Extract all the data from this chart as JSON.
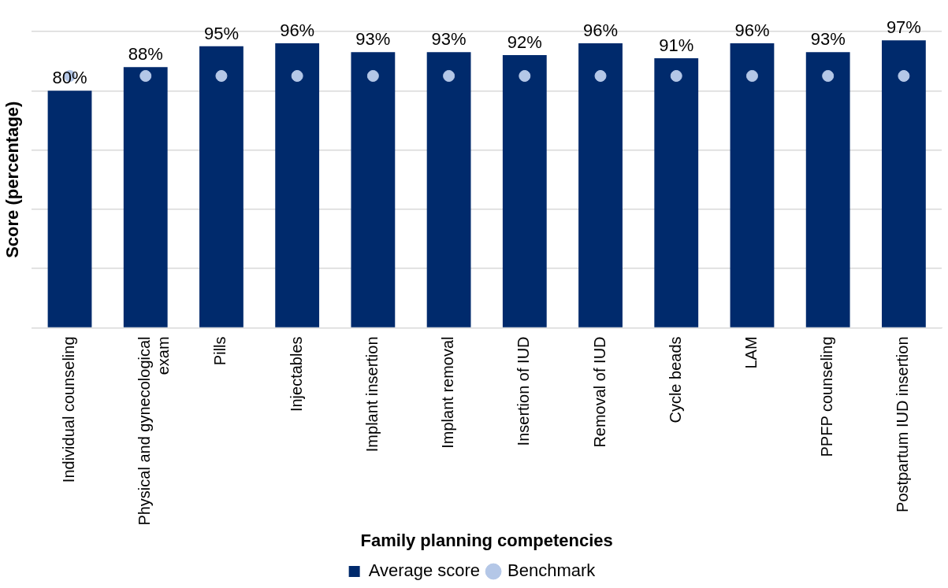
{
  "chart_data": {
    "type": "bar",
    "xlabel": "Family planning competencies",
    "ylabel": "Score (percentage)",
    "categories": [
      "Individual counseling",
      "Physical and gynecological exam",
      "Pills",
      "Injectables",
      "Implant insertion",
      "Implant removal",
      "Insertion of IUD",
      "Removal of IUD",
      "Cycle beads",
      "LAM",
      "PPFP counseling",
      "Postpartum IUD insertion"
    ],
    "ylim": [
      0,
      100
    ],
    "yticks": [
      {
        "value": 0,
        "label": null
      },
      {
        "value": 20,
        "label": null
      },
      {
        "value": 40,
        "label": null
      },
      {
        "value": 60,
        "label": null
      },
      {
        "value": 80,
        "label": null
      },
      {
        "value": 100,
        "label": null
      }
    ],
    "grid": "y",
    "legend": "bottom",
    "series": [
      {
        "name": "Average score",
        "color": "#002a6c",
        "values": [
          80,
          88,
          95,
          96,
          93,
          93,
          92,
          96,
          91,
          96,
          93,
          97
        ],
        "value_labels": [
          "80%",
          "88%",
          "95%",
          "96%",
          "93%",
          "93%",
          "92%",
          "96%",
          "91%",
          "96%",
          "93%",
          "97%"
        ]
      },
      {
        "type": "scatter",
        "name": "Benchmark",
        "color": "#b4c7e7",
        "marker": "circle",
        "x": [
          "Individual counseling",
          "Physical and gynecological exam",
          "Pills",
          "Injectables",
          "Implant insertion",
          "Implant removal",
          "Insertion of IUD",
          "Removal of IUD",
          "Cycle beads",
          "LAM",
          "PPFP counseling",
          "Postpartum IUD insertion"
        ],
        "values": [
          85,
          85,
          85,
          85,
          85,
          85,
          85,
          85,
          85,
          85,
          85,
          85
        ]
      }
    ]
  }
}
